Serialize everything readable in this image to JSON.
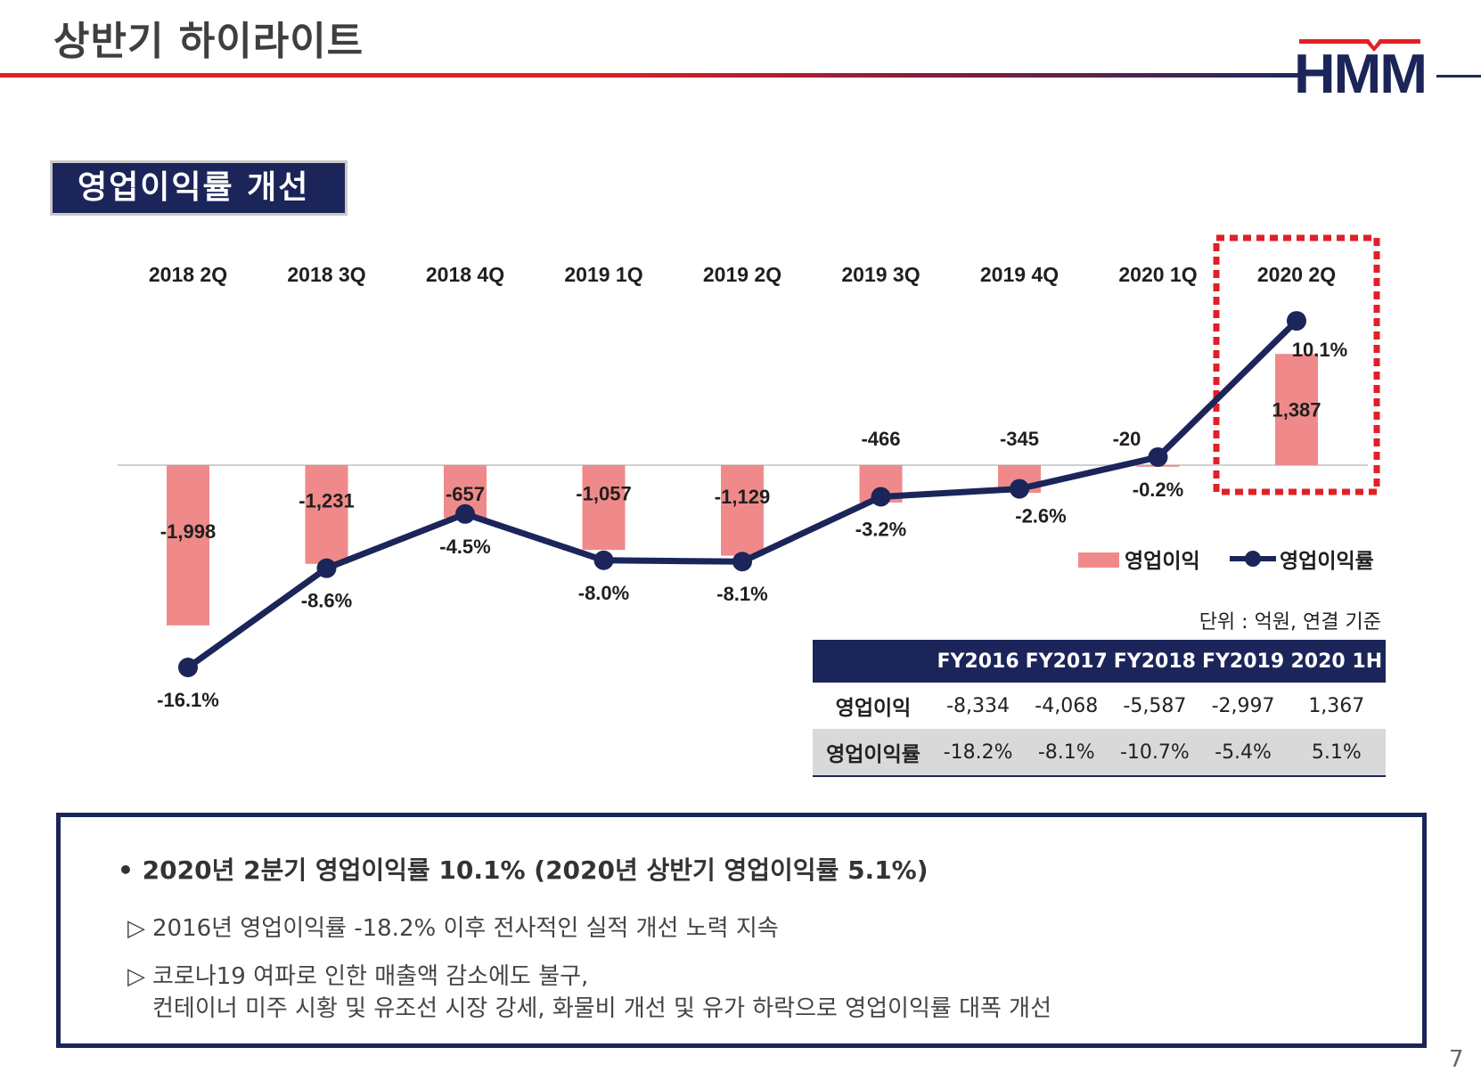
{
  "page": {
    "title": "상반기 하이라이트",
    "section_title": "영업이익률 개선",
    "page_number": "7",
    "logo_text": "HMM"
  },
  "colors": {
    "bar": "#f08a8a",
    "line": "#1b2559",
    "highlight": "#e21f26",
    "header_red": "#e21f26",
    "navy": "#1b2559"
  },
  "chart_data": {
    "type": "bar+line",
    "categories": [
      "2018 2Q",
      "2018 3Q",
      "2018 4Q",
      "2019 1Q",
      "2019 2Q",
      "2019 3Q",
      "2019 4Q",
      "2020 1Q",
      "2020 2Q"
    ],
    "series": [
      {
        "name": "영업이익",
        "type": "bar",
        "values": [
          -1998,
          -1231,
          -657,
          -1057,
          -1129,
          -466,
          -345,
          -20,
          1387
        ],
        "labels": [
          "-1,998",
          "-1,231",
          "-657",
          "-1,057",
          "-1,129",
          "-466",
          "-345",
          "-20",
          "1,387"
        ]
      },
      {
        "name": "영업이익률",
        "type": "line",
        "values": [
          -16.1,
          -8.6,
          -4.5,
          -8.0,
          -8.1,
          -3.2,
          -2.6,
          -0.2,
          10.1
        ],
        "labels": [
          "-16.1%",
          "-8.6%",
          "-4.5%",
          "-8.0%",
          "-8.1%",
          "-3.2%",
          "-2.6%",
          "-0.2%",
          "10.1%"
        ]
      }
    ],
    "highlighted_category": "2020 2Q",
    "legend": [
      "영업이익",
      "영업이익률"
    ]
  },
  "table": {
    "unit_note": "단위 : 억원, 연결 기준",
    "headers": [
      "",
      "FY2016",
      "FY2017",
      "FY2018",
      "FY2019",
      "2020 1H"
    ],
    "rows": [
      {
        "label": "영업이익",
        "values": [
          "-8,334",
          "-4,068",
          "-5,587",
          "-2,997",
          "1,367"
        ]
      },
      {
        "label": "영업이익률",
        "values": [
          "-18.2%",
          "-8.1%",
          "-10.7%",
          "-5.4%",
          "5.1%"
        ]
      }
    ]
  },
  "summary": {
    "bullet": "• 2020년 2분기 영업이익률 10.1% (2020년 상반기 영업이익률 5.1%)",
    "marker": "▷",
    "line1": "2016년 영업이익률 -18.2% 이후 전사적인 실적 개선 노력 지속",
    "line2": "코로나19 여파로 인한 매출액 감소에도 불구,",
    "line3": "컨테이너 미주 시황 및 유조선 시장 강세, 화물비 개선 및 유가 하락으로 영업이익률 대폭 개선"
  }
}
